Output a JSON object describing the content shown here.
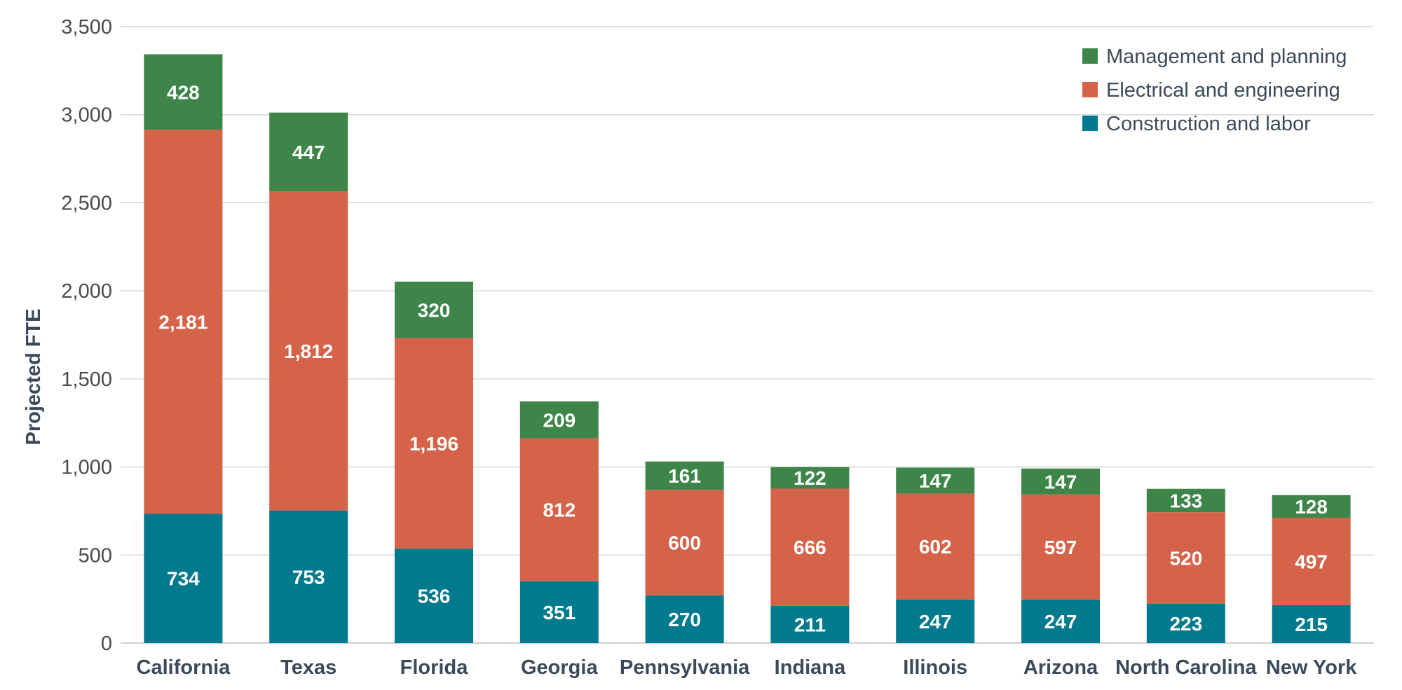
{
  "chart_data": {
    "type": "bar",
    "stacked": true,
    "ylabel": "Projected FTE",
    "xlabel": "",
    "ylim": [
      0,
      3500
    ],
    "yticks": [
      0,
      500,
      1000,
      1500,
      2000,
      2500,
      3000,
      3500
    ],
    "ytick_labels": [
      "0",
      "500",
      "1,000",
      "1,500",
      "2,000",
      "2,500",
      "3,000",
      "3,500"
    ],
    "grid": true,
    "legend_position": "top-right",
    "categories": [
      "California",
      "Texas",
      "Florida",
      "Georgia",
      "Pennsylvania",
      "Indiana",
      "Illinois",
      "Arizona",
      "North Carolina",
      "New York"
    ],
    "series": [
      {
        "name": "Construction and labor",
        "color": "#007a8c",
        "values": [
          734,
          753,
          536,
          351,
          270,
          211,
          247,
          247,
          223,
          215
        ],
        "labels": [
          "734",
          "753",
          "536",
          "351",
          "270",
          "211",
          "247",
          "247",
          "223",
          "215"
        ]
      },
      {
        "name": "Electrical and engineering",
        "color": "#d4634a",
        "values": [
          2181,
          1812,
          1196,
          812,
          600,
          666,
          602,
          597,
          520,
          497
        ],
        "labels": [
          "2,181",
          "1,812",
          "1,196",
          "812",
          "600",
          "666",
          "602",
          "597",
          "520",
          "497"
        ]
      },
      {
        "name": "Management and planning",
        "color": "#3d8548",
        "values": [
          428,
          447,
          320,
          209,
          161,
          122,
          147,
          147,
          133,
          128
        ],
        "labels": [
          "428",
          "447",
          "320",
          "209",
          "161",
          "122",
          "147",
          "147",
          "133",
          "128"
        ]
      }
    ],
    "legend_order": [
      "Management and planning",
      "Electrical and engineering",
      "Construction and labor"
    ]
  }
}
